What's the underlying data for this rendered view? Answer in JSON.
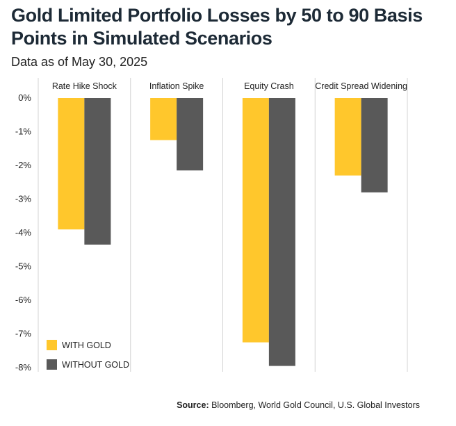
{
  "title": "Gold Limited Portfolio Losses by 50 to 90 Basis Points in Simulated Scenarios",
  "subtitle": "Data as of May 30, 2025",
  "source": {
    "label": "Source:",
    "text": "Bloomberg, World Gold Council, U.S. Global Investors"
  },
  "colors": {
    "with_gold": "#FFC72C",
    "without_gold": "#595959"
  },
  "chart_data": {
    "type": "bar",
    "categories": [
      "Rate Hike Shock",
      "Inflation Spike",
      "Equity Crash",
      "Credit Spread Widening"
    ],
    "series": [
      {
        "name": "WITH GOLD",
        "values": [
          -3.9,
          -1.25,
          -7.25,
          -2.3
        ]
      },
      {
        "name": "WITHOUT GOLD",
        "values": [
          -4.35,
          -2.15,
          -7.95,
          -2.8
        ]
      }
    ],
    "y_ticks": [
      "0%",
      "-1%",
      "-2%",
      "-3%",
      "-4%",
      "-5%",
      "-6%",
      "-7%",
      "-8%"
    ],
    "ylim": [
      -8,
      0
    ],
    "legend_position": "bottom-left",
    "grid": false
  }
}
